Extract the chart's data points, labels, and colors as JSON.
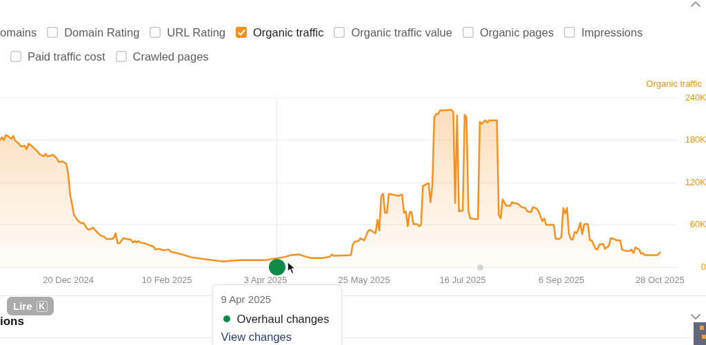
{
  "chart_data": {
    "type": "area",
    "ylabel": "Organic traffic",
    "annotations": [
      "omains",
      "Domain Rating",
      "URL Rating",
      "Organic traffic value",
      "Organic pages",
      "Impressions",
      "Paid traffic cost",
      "Crawled pages",
      "9 Apr 2025",
      "Overhaul changes",
      "View changes",
      "ions",
      "Lire",
      "K"
    ],
    "x": [
      "2024-11-14",
      "2024-11-15",
      "2024-11-16",
      "2024-11-17",
      "2024-11-18",
      "2024-11-20",
      "2024-11-21",
      "2024-11-22",
      "2024-11-24",
      "2024-11-25",
      "2024-11-27",
      "2024-11-28",
      "2024-11-29",
      "2024-12-01",
      "2024-12-03",
      "2024-12-05",
      "2024-12-07",
      "2024-12-08",
      "2024-12-09",
      "2024-12-12",
      "2024-12-14",
      "2024-12-15",
      "2024-12-17",
      "2024-12-19",
      "2024-12-20",
      "2024-12-21",
      "2024-12-22",
      "2024-12-23",
      "2024-12-25",
      "2024-12-27",
      "2024-12-28",
      "2024-12-30",
      "2024-12-31",
      "2025-01-02",
      "2025-01-04",
      "2025-01-06",
      "2025-01-08",
      "2025-01-09",
      "2025-01-12",
      "2025-01-13",
      "2025-01-14",
      "2025-01-15",
      "2025-01-16",
      "2025-01-18",
      "2025-01-20",
      "2025-01-22",
      "2025-01-23",
      "2025-01-24",
      "2025-01-25",
      "2025-01-26",
      "2025-01-27",
      "2025-01-29",
      "2025-02-01",
      "2025-02-03",
      "2025-02-04",
      "2025-02-06",
      "2025-02-08",
      "2025-02-11",
      "2025-02-12",
      "2025-02-18",
      "2025-02-23",
      "2025-03-03",
      "2025-03-12",
      "2025-03-15",
      "2025-03-20",
      "2025-03-23",
      "2025-03-25",
      "2025-04-03",
      "2025-04-14",
      "2025-04-16",
      "2025-04-21",
      "2025-04-24",
      "2025-04-27",
      "2025-05-03",
      "2025-05-07",
      "2025-05-08",
      "2025-05-09",
      "2025-05-18",
      "2025-05-19",
      "2025-05-20",
      "2025-05-22",
      "2025-05-23",
      "2025-05-25",
      "2025-05-26",
      "2025-05-27",
      "2025-05-28",
      "2025-05-31",
      "2025-06-01",
      "2025-06-02",
      "2025-06-03",
      "2025-06-04",
      "2025-06-05",
      "2025-06-06",
      "2025-06-07",
      "2025-06-09",
      "2025-06-12",
      "2025-06-14",
      "2025-06-15",
      "2025-06-16",
      "2025-06-17",
      "2025-06-18",
      "2025-06-19",
      "2025-06-20",
      "2025-06-22",
      "2025-06-23",
      "2025-06-24",
      "2025-06-25",
      "2025-06-27",
      "2025-06-28",
      "2025-06-29",
      "2025-06-30",
      "2025-07-01",
      "2025-07-02",
      "2025-07-03",
      "2025-07-04",
      "2025-07-10",
      "2025-07-11",
      "2025-07-12",
      "2025-07-13",
      "2025-07-14",
      "2025-07-15",
      "2025-07-16",
      "2025-07-17",
      "2025-07-18",
      "2025-07-19",
      "2025-07-20",
      "2025-07-23",
      "2025-07-24",
      "2025-07-25",
      "2025-07-26",
      "2025-07-27",
      "2025-07-28",
      "2025-07-29",
      "2025-07-30",
      "2025-08-03",
      "2025-08-04",
      "2025-08-05",
      "2025-08-06",
      "2025-08-08",
      "2025-08-10",
      "2025-08-11",
      "2025-08-12",
      "2025-08-14",
      "2025-08-16",
      "2025-08-18",
      "2025-08-19",
      "2025-08-21",
      "2025-08-22",
      "2025-08-24",
      "2025-08-25",
      "2025-08-27",
      "2025-08-28",
      "2025-08-29",
      "2025-08-31",
      "2025-09-02",
      "2025-09-03",
      "2025-09-05",
      "2025-09-06",
      "2025-09-07",
      "2025-09-08",
      "2025-09-09",
      "2025-09-10",
      "2025-09-11",
      "2025-09-12",
      "2025-09-13",
      "2025-09-14",
      "2025-09-15",
      "2025-09-16",
      "2025-09-17",
      "2025-09-18",
      "2025-09-19",
      "2025-09-20",
      "2025-09-21",
      "2025-09-22",
      "2025-09-24",
      "2025-09-25",
      "2025-09-26",
      "2025-09-28",
      "2025-09-29",
      "2025-10-01",
      "2025-10-02",
      "2025-10-04",
      "2025-10-05",
      "2025-10-07",
      "2025-10-08",
      "2025-10-10",
      "2025-10-12",
      "2025-10-13",
      "2025-10-14",
      "2025-10-15",
      "2025-10-17",
      "2025-10-18",
      "2025-10-19",
      "2025-10-20",
      "2025-10-23",
      "2025-10-26",
      "2025-10-27",
      "2025-10-28"
    ],
    "series": [
      {
        "name": "Organic traffic",
        "color": "#f7901e",
        "values": [
          180000,
          184000,
          180000,
          187000,
          186000,
          182000,
          186000,
          179000,
          175000,
          171000,
          172000,
          167000,
          175000,
          171000,
          166000,
          160000,
          157000,
          161000,
          157000,
          159000,
          154000,
          149000,
          150000,
          146000,
          131000,
          102000,
          89000,
          74000,
          66000,
          62000,
          63000,
          54000,
          53000,
          56000,
          50000,
          45000,
          43000,
          40000,
          40000,
          42000,
          48000,
          34000,
          34000,
          41000,
          40000,
          39000,
          35000,
          37000,
          35000,
          37000,
          35000,
          34000,
          31000,
          29000,
          25000,
          26000,
          24000,
          25000,
          22000,
          18000,
          14000,
          11000,
          8000,
          9000,
          10000,
          10000,
          10000,
          10000,
          15000,
          17000,
          18000,
          15000,
          13000,
          13000,
          15000,
          18000,
          16000,
          17000,
          32000,
          36000,
          37000,
          41000,
          38000,
          44000,
          51000,
          53000,
          48000,
          67000,
          52000,
          100000,
          104000,
          77000,
          77000,
          104000,
          103000,
          101000,
          103000,
          77000,
          79000,
          58000,
          78000,
          78000,
          61000,
          61000,
          58000,
          60000,
          115000,
          118000,
          119000,
          92000,
          118000,
          213000,
          217000,
          217000,
          222000,
          223000,
          220000,
          91000,
          215000,
          79000,
          80000,
          80000,
          216000,
          212000,
          79000,
          69000,
          68000,
          68000,
          206000,
          203000,
          206000,
          208000,
          205000,
          208000,
          208000,
          74000,
          69000,
          96000,
          87000,
          87000,
          92000,
          91000,
          90000,
          85000,
          84000,
          79000,
          78000,
          85000,
          83000,
          79000,
          65000,
          69000,
          60000,
          60000,
          60000,
          40000,
          40000,
          43000,
          84000,
          76000,
          84000,
          47000,
          40000,
          39000,
          50000,
          48000,
          54000,
          63000,
          47000,
          61000,
          61000,
          61000,
          38000,
          38000,
          26000,
          25000,
          32000,
          33000,
          26000,
          30000,
          41000,
          40000,
          38000,
          38000,
          25000,
          23000,
          23000,
          25000,
          20000,
          28000,
          25000,
          19000,
          20000,
          17000,
          17000,
          17000,
          18000,
          21000
        ]
      }
    ],
    "xlim": [
      "2024-11-14",
      "2025-11-06"
    ],
    "xticks": [
      {
        "value": "2024-12-20",
        "label": "20 Dec 2024"
      },
      {
        "value": "2025-02-10",
        "label": "10 Feb 2025"
      },
      {
        "value": "2025-04-03",
        "label": "3 Apr 2025"
      },
      {
        "value": "2025-05-25",
        "label": "25 May 2025"
      },
      {
        "value": "2025-07-16",
        "label": "16 Jul 2025"
      },
      {
        "value": "2025-09-06",
        "label": "6 Sep 2025"
      },
      {
        "value": "2025-10-28",
        "label": "28 Oct 2025"
      }
    ],
    "ylim": [
      0,
      240000
    ],
    "yticks": [
      0,
      {
        "value": 60000,
        "label": "60K"
      },
      {
        "value": 120000,
        "label": "120K"
      },
      {
        "value": 180000,
        "label": "180K"
      },
      {
        "value": 240000,
        "label": "240K"
      }
    ],
    "ref_lines": [
      {
        "axis": "x",
        "value": "2025-04-09",
        "color": "#e6e6e6"
      }
    ],
    "grid": "y",
    "legend": "top left",
    "marker": "none"
  }
}
